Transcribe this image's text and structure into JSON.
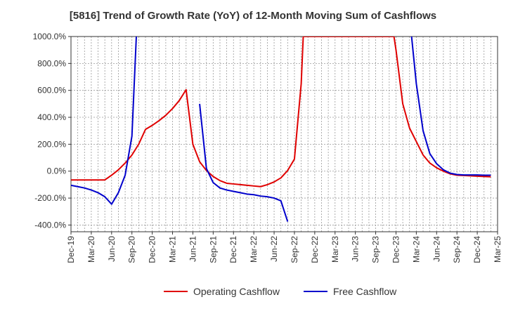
{
  "title": "[5816]  Trend of Growth Rate (YoY) of 12-Month Moving Sum of Cashflows",
  "chart_data": {
    "type": "line",
    "title": "[5816]  Trend of Growth Rate (YoY) of 12-Month Moving Sum of Cashflows",
    "xlabel": "",
    "ylabel": "",
    "ylim": [
      -450,
      1000
    ],
    "y_ticks": [
      -400,
      -200,
      0,
      200,
      400,
      600,
      800,
      1000
    ],
    "y_tick_labels": [
      "-400.0%",
      "-200.0%",
      "0.0%",
      "200.0%",
      "400.0%",
      "600.0%",
      "800.0%",
      "1000.0%"
    ],
    "x_tick_labels": [
      "Dec-19",
      "Mar-20",
      "Jun-20",
      "Sep-20",
      "Dec-20",
      "Mar-21",
      "Jun-21",
      "Sep-21",
      "Dec-21",
      "Mar-22",
      "Jun-22",
      "Sep-22",
      "Dec-22",
      "Mar-23",
      "Jun-23",
      "Sep-23",
      "Dec-23",
      "Mar-24",
      "Jun-24",
      "Sep-24",
      "Dec-24",
      "Mar-25"
    ],
    "grid": true,
    "legend_position": "bottom",
    "series": [
      {
        "name": "Operating Cashflow",
        "color": "#e00000",
        "points": [
          [
            0,
            -65
          ],
          [
            1,
            -65
          ],
          [
            2,
            -65
          ],
          [
            3,
            -65
          ],
          [
            4,
            -65
          ],
          [
            5,
            -65
          ],
          [
            6,
            -30
          ],
          [
            7,
            10
          ],
          [
            8,
            60
          ],
          [
            9,
            120
          ],
          [
            10,
            200
          ],
          [
            11,
            310
          ],
          [
            12,
            340
          ],
          [
            13,
            375
          ],
          [
            14,
            415
          ],
          [
            15,
            465
          ],
          [
            16,
            525
          ],
          [
            17,
            605
          ],
          [
            18,
            200
          ],
          [
            19,
            70
          ],
          [
            20,
            5
          ],
          [
            21,
            -40
          ],
          [
            22,
            -70
          ],
          [
            23,
            -90
          ],
          [
            24,
            -95
          ],
          [
            25,
            -100
          ],
          [
            26,
            -105
          ],
          [
            27,
            -110
          ],
          [
            28,
            -115
          ],
          [
            29,
            -100
          ],
          [
            30,
            -80
          ],
          [
            31,
            -50
          ],
          [
            32,
            5
          ],
          [
            33,
            90
          ],
          [
            34,
            650
          ],
          [
            34.3,
            1000
          ],
          [
            47.7,
            1000
          ],
          [
            48,
            900
          ],
          [
            49,
            500
          ],
          [
            50,
            320
          ],
          [
            51,
            220
          ],
          [
            52,
            120
          ],
          [
            53,
            60
          ],
          [
            54,
            25
          ],
          [
            55,
            0
          ],
          [
            56,
            -20
          ],
          [
            57,
            -30
          ],
          [
            58,
            -32
          ],
          [
            59,
            -35
          ],
          [
            60,
            -37
          ],
          [
            61,
            -40
          ],
          [
            62,
            -42
          ]
        ]
      },
      {
        "name": "Free Cashflow",
        "color": "#0000cc",
        "segments": [
          [
            [
              0,
              -105
            ],
            [
              1,
              -115
            ],
            [
              2,
              -125
            ],
            [
              3,
              -140
            ],
            [
              4,
              -160
            ],
            [
              5,
              -190
            ],
            [
              6,
              -245
            ],
            [
              7,
              -160
            ],
            [
              8,
              -30
            ],
            [
              9,
              260
            ],
            [
              9.65,
              1000
            ]
          ],
          [
            [
              19,
              500
            ],
            [
              20,
              20
            ],
            [
              21,
              -85
            ],
            [
              22,
              -125
            ],
            [
              23,
              -140
            ],
            [
              24,
              -150
            ],
            [
              25,
              -160
            ],
            [
              26,
              -170
            ],
            [
              27,
              -175
            ],
            [
              28,
              -185
            ],
            [
              29,
              -190
            ],
            [
              30,
              -200
            ],
            [
              31,
              -220
            ],
            [
              32,
              -375
            ]
          ],
          [
            [
              50.3,
              1000
            ],
            [
              51,
              650
            ],
            [
              52,
              300
            ],
            [
              53,
              130
            ],
            [
              54,
              55
            ],
            [
              55,
              10
            ],
            [
              56,
              -15
            ],
            [
              57,
              -25
            ],
            [
              58,
              -28
            ],
            [
              59,
              -28
            ],
            [
              60,
              -28
            ],
            [
              61,
              -30
            ],
            [
              62,
              -30
            ]
          ]
        ]
      }
    ]
  }
}
